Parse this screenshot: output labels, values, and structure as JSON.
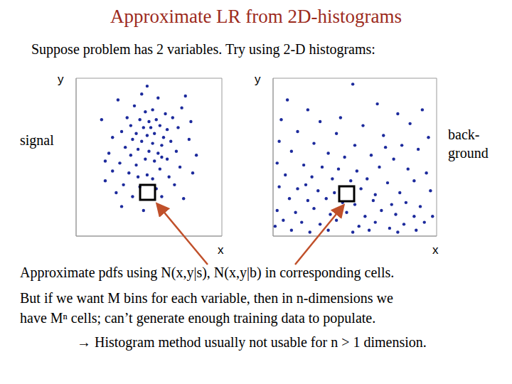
{
  "title": "Approximate LR from 2D-histograms",
  "subtitle": "Suppose problem has 2 variables.  Try using 2-D histograms:",
  "text": [
    "Approximate pdfs using N(x,y|s), N(x,y|b) in corresponding cells.",
    "But if we want M bins for each variable, then in n-dimensions we",
    "have Mⁿ cells; can’t generate enough training data to populate.",
    "→ Histogram method usually not usable for n > 1 dimension."
  ],
  "chart_data": [
    {
      "type": "scatter",
      "title": "signal",
      "x_label": "x",
      "y_label": "y",
      "color": "#1c2a9c",
      "marker": "circle",
      "grid": true,
      "tick_labels": false,
      "xlim": [
        0,
        8
      ],
      "ylim": [
        0,
        8
      ],
      "xticks": [
        0,
        1,
        2,
        3,
        4,
        5,
        6,
        7,
        8
      ],
      "yticks": [
        0,
        1,
        2,
        3,
        4,
        5,
        6,
        7,
        8
      ],
      "x": [
        3.9,
        2.3,
        4.5,
        5.8,
        3.2,
        3.8,
        4.2,
        4.9,
        5.3,
        2.8,
        3.5,
        4.0,
        4.4,
        3.0,
        3.7,
        4.1,
        4.6,
        5.0,
        5.6,
        2.5,
        3.3,
        3.9,
        4.3,
        4.8,
        2.0,
        3.1,
        3.6,
        4.2,
        4.7,
        5.2,
        6.2,
        2.7,
        3.4,
        4.0,
        4.5,
        5.5,
        1.8,
        3.0,
        3.8,
        4.3,
        5.0,
        2.4,
        3.3,
        4.6,
        5.7,
        2.0,
        2.9,
        3.9,
        4.2,
        5.1,
        6.4,
        1.6,
        2.6,
        3.5,
        4.4,
        5.4,
        2.2,
        3.1,
        4.7,
        5.9,
        2.5,
        3.7,
        4.9,
        6.3,
        6.0,
        1.4,
        1.6,
        6.6,
        3.6,
        4.7,
        3.4
      ],
      "values": [
        7.6,
        6.9,
        7.0,
        6.5,
        6.6,
        6.3,
        6.4,
        6.2,
        6.0,
        6.0,
        5.9,
        5.8,
        5.9,
        5.6,
        5.5,
        5.5,
        5.6,
        5.4,
        5.5,
        5.3,
        5.2,
        5.1,
        5.2,
        5.0,
        5.0,
        4.9,
        4.8,
        4.7,
        4.6,
        4.8,
        4.9,
        4.5,
        4.4,
        4.3,
        4.2,
        4.3,
        4.2,
        4.1,
        3.9,
        3.8,
        3.9,
        3.7,
        3.6,
        3.4,
        3.5,
        3.3,
        3.2,
        3.1,
        2.9,
        3.0,
        3.2,
        2.8,
        2.6,
        2.5,
        2.4,
        2.6,
        2.2,
        2.0,
        2.0,
        1.9,
        1.5,
        1.3,
        1.4,
        5.8,
        7.1,
        5.9,
        3.8,
        4.1,
        7.2,
        4.0,
        3.0
      ]
    },
    {
      "type": "scatter",
      "title": "back-\nground",
      "x_label": "x",
      "y_label": "y",
      "color": "#1c2a9c",
      "marker": "circle",
      "grid": true,
      "tick_labels": false,
      "xlim": [
        0,
        8
      ],
      "ylim": [
        0,
        8
      ],
      "xticks": [
        0,
        1,
        2,
        3,
        4,
        5,
        6,
        7,
        8
      ],
      "yticks": [
        0,
        0.5,
        1,
        1.5,
        2,
        2.5,
        3,
        3.5,
        4,
        4.5,
        5,
        5.5,
        6,
        6.5,
        7,
        7.5,
        8
      ],
      "x": [
        3.9,
        0.7,
        5.1,
        1.7,
        6.1,
        7.3,
        0.4,
        2.3,
        4.4,
        6.7,
        1.2,
        3.1,
        5.4,
        7.6,
        0.3,
        2.0,
        4.0,
        6.3,
        7.1,
        0.9,
        2.7,
        3.5,
        4.8,
        5.9,
        0.2,
        1.5,
        2.4,
        3.2,
        4.1,
        5.2,
        6.6,
        7.5,
        0.6,
        1.9,
        2.9,
        3.8,
        4.6,
        5.6,
        6.9,
        0.3,
        1.2,
        2.2,
        3.0,
        4.3,
        5.0,
        6.2,
        7.7,
        0.8,
        1.7,
        2.6,
        3.4,
        4.0,
        4.9,
        5.8,
        6.5,
        7.2,
        0.2,
        1.1,
        2.0,
        2.8,
        3.6,
        4.5,
        5.3,
        6.0,
        6.9,
        0.5,
        1.4,
        2.3,
        3.1,
        4.2,
        5.0,
        5.7,
        6.4,
        7.4,
        0.9,
        1.8,
        2.7,
        3.9,
        4.7,
        6.1,
        7.0,
        0.1,
        1.6,
        7.8,
        3.3,
        5.5
      ],
      "values": [
        7.7,
        6.9,
        6.7,
        6.4,
        6.2,
        6.4,
        5.9,
        5.8,
        5.6,
        5.7,
        5.3,
        5.2,
        5.1,
        5.0,
        4.8,
        4.7,
        4.6,
        4.6,
        4.4,
        4.3,
        4.2,
        4.0,
        4.1,
        3.9,
        3.7,
        3.6,
        3.5,
        3.4,
        3.3,
        3.5,
        3.4,
        3.2,
        3.1,
        3.0,
        2.9,
        2.8,
        2.9,
        2.7,
        2.8,
        2.5,
        2.4,
        2.3,
        2.2,
        2.4,
        2.1,
        2.2,
        2.3,
        1.9,
        1.8,
        1.9,
        1.7,
        1.6,
        1.8,
        1.6,
        1.7,
        1.5,
        1.3,
        1.2,
        1.4,
        1.1,
        1.2,
        1.0,
        1.3,
        1.1,
        1.0,
        0.8,
        0.7,
        0.6,
        0.8,
        0.5,
        0.7,
        0.4,
        0.6,
        0.7,
        0.3,
        0.2,
        0.3,
        0.2,
        0.3,
        0.2,
        0.3,
        0.5,
        2.6,
        1.0,
        6.0,
        4.5
      ]
    }
  ]
}
